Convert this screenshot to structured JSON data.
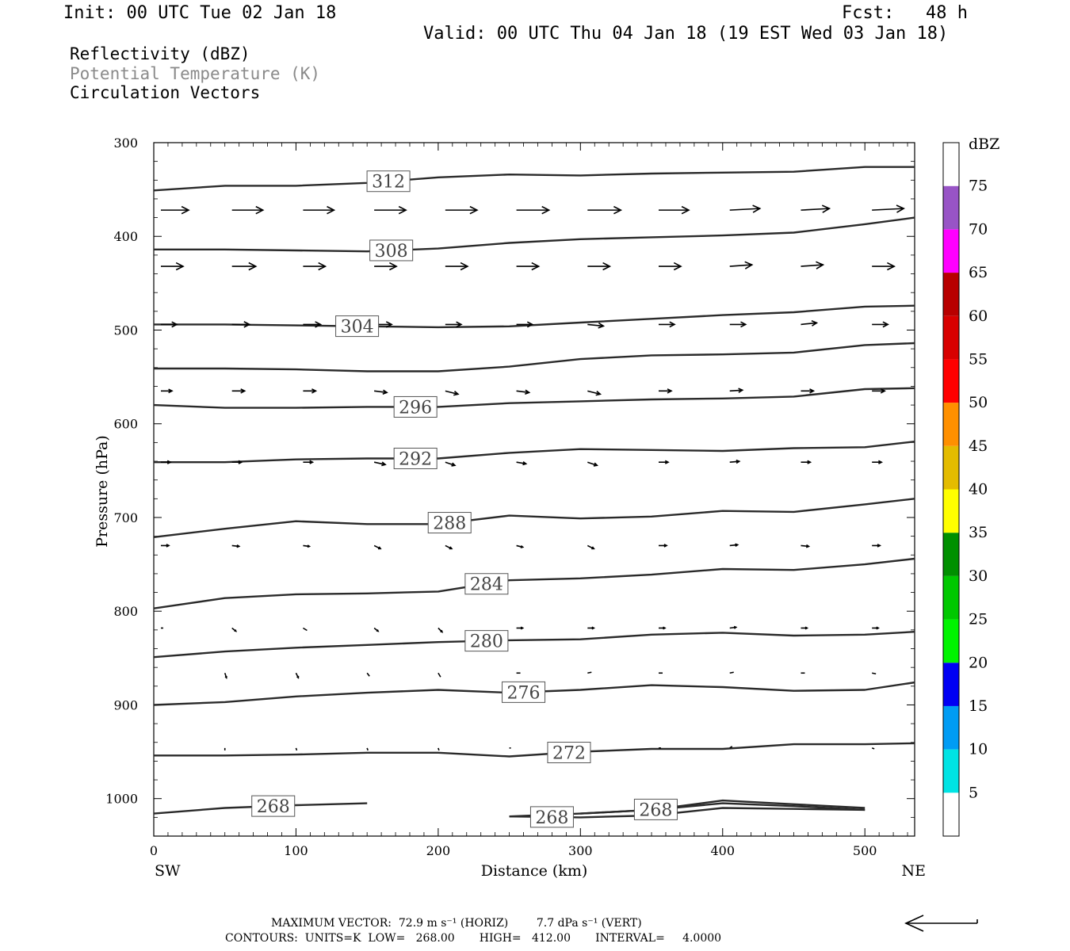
{
  "header": {
    "init": "Init: 00 UTC Tue 02 Jan 18",
    "fcst": "Fcst:   48 h",
    "valid": "Valid: 00 UTC Thu 04 Jan 18 (19 EST Wed 03 Jan 18)",
    "fields": [
      "Reflectivity (dBZ)",
      "Potential Temperature (K)",
      "Circulation Vectors"
    ]
  },
  "footer": {
    "max_vector": "MAXIMUM VECTOR:  72.9 m s⁻¹ (HORIZ)        7.7 dPa s⁻¹ (VERT)",
    "contours": "CONTOURS:  UNITS=K  LOW=   268.00       HIGH=   412.00       INTERVAL=     4.0000"
  },
  "chart_data": {
    "type": "line",
    "title": "",
    "xlabel": "Distance (km)",
    "ylabel": "Pressure (hPa)",
    "x_ticks": [
      0,
      100,
      200,
      300,
      400,
      500
    ],
    "y_ticks": [
      300,
      400,
      500,
      600,
      700,
      800,
      900,
      1000
    ],
    "xlim": [
      0,
      535
    ],
    "ylim": [
      300,
      1040
    ],
    "x_end_labels": {
      "left": "SW",
      "right": "NE"
    },
    "colorbar": {
      "label": "dBZ",
      "ticks": [
        5,
        10,
        15,
        20,
        25,
        30,
        35,
        40,
        45,
        50,
        55,
        60,
        65,
        70,
        75
      ],
      "colors": [
        "#ffffff",
        "#00e4e4",
        "#009cf4",
        "#0000f4",
        "#00f400",
        "#00c800",
        "#009000",
        "#ffff00",
        "#e4bc00",
        "#ff9000",
        "#ff0000",
        "#d80000",
        "#b80000",
        "#ff00ff",
        "#9854c6",
        "#ffffff"
      ]
    },
    "contour_x": [
      0,
      50,
      100,
      150,
      200,
      250,
      300,
      350,
      400,
      450,
      500,
      535
    ],
    "contours": [
      {
        "label": "312",
        "y": [
          351,
          346,
          346,
          343,
          337,
          334,
          335,
          333,
          332,
          331,
          326,
          326
        ],
        "label_x": 165
      },
      {
        "label": "308",
        "y": [
          414,
          414,
          415,
          416,
          413,
          407,
          403,
          401,
          399,
          396,
          387,
          380
        ],
        "label_x": 167
      },
      {
        "label": "304",
        "y": [
          494,
          494,
          495,
          496,
          497,
          496,
          492,
          488,
          484,
          481,
          475,
          474
        ],
        "label_x": 143
      },
      {
        "label": "",
        "y": [
          541,
          541,
          542,
          544,
          544,
          539,
          531,
          527,
          526,
          524,
          516,
          514
        ],
        "label_x": 300
      },
      {
        "label": "296",
        "y": [
          580,
          583,
          583,
          582,
          582,
          578,
          576,
          574,
          573,
          571,
          563,
          562
        ],
        "label_x": 184
      },
      {
        "label": "292",
        "y": [
          641,
          641,
          638,
          637,
          637,
          631,
          627,
          628,
          629,
          626,
          625,
          619
        ],
        "label_x": 184
      },
      {
        "label": "288",
        "y": [
          721,
          712,
          704,
          707,
          707,
          698,
          701,
          699,
          693,
          694,
          686,
          680
        ],
        "label_x": 208
      },
      {
        "label": "284",
        "y": [
          797,
          786,
          782,
          781,
          779,
          767,
          765,
          761,
          755,
          756,
          750,
          744
        ],
        "label_x": 234
      },
      {
        "label": "280",
        "y": [
          849,
          843,
          839,
          836,
          833,
          831,
          830,
          825,
          823,
          826,
          825,
          822
        ],
        "label_x": 234
      },
      {
        "label": "276",
        "y": [
          900,
          897,
          891,
          887,
          884,
          887,
          884,
          879,
          881,
          885,
          884,
          876
        ],
        "label_x": 260
      },
      {
        "label": "272",
        "y": [
          954,
          954,
          953,
          951,
          951,
          955,
          950,
          947,
          947,
          942,
          942,
          941
        ],
        "label_x": 292
      },
      {
        "label": "268",
        "y": [
          1016,
          1010,
          1007,
          1005,
          null,
          1019,
          1016,
          1012,
          1002,
          1006,
          1010,
          null
        ],
        "label_x": 84
      },
      {
        "label": "268",
        "y": [
          null,
          null,
          null,
          null,
          null,
          1019,
          1020,
          1018,
          1010,
          1011,
          1012,
          null
        ],
        "label_x": 280
      },
      {
        "label": "268",
        "y": [
          null,
          null,
          null,
          null,
          null,
          null,
          1016,
          1012,
          1005,
          1008,
          1012,
          null
        ],
        "label_x": 353
      }
    ],
    "vector_rows": [
      {
        "p": 372,
        "x": [
          5,
          55,
          105,
          155,
          205,
          255,
          305,
          355,
          405,
          455,
          505
        ],
        "u": [
          35,
          39,
          39,
          40,
          40,
          41,
          42,
          38,
          38,
          36,
          40
        ],
        "w": [
          0,
          0,
          0,
          0,
          0,
          0,
          0,
          0,
          -2,
          -2,
          -2
        ]
      },
      {
        "p": 432,
        "x": [
          5,
          55,
          105,
          155,
          205,
          255,
          305,
          355,
          405,
          455,
          505
        ],
        "u": [
          28,
          30,
          28,
          28,
          28,
          28,
          28,
          28,
          28,
          28,
          28
        ],
        "w": [
          0,
          0,
          0,
          0,
          0,
          0,
          0,
          0,
          -2,
          -2,
          0
        ]
      },
      {
        "p": 494,
        "x": [
          5,
          55,
          105,
          155,
          205,
          255,
          305,
          355,
          405,
          455,
          505
        ],
        "u": [
          20,
          22,
          22,
          22,
          20,
          20,
          20,
          20,
          20,
          20,
          20
        ],
        "w": [
          0,
          0,
          0,
          0,
          0,
          0,
          2,
          0,
          0,
          -2,
          0
        ]
      },
      {
        "p": 565,
        "x": [
          5,
          55,
          105,
          155,
          205,
          255,
          305,
          355,
          405,
          455,
          505
        ],
        "u": [
          14,
          16,
          16,
          16,
          16,
          16,
          16,
          16,
          16,
          16,
          16
        ],
        "w": [
          0,
          0,
          0,
          2,
          4,
          2,
          4,
          0,
          -1,
          0,
          0
        ]
      },
      {
        "p": 641,
        "x": [
          5,
          55,
          105,
          155,
          205,
          255,
          305,
          355,
          405,
          455,
          505
        ],
        "u": [
          12,
          12,
          12,
          14,
          12,
          12,
          12,
          12,
          12,
          12,
          12
        ],
        "w": [
          0,
          0,
          0,
          3,
          4,
          2,
          4,
          0,
          -1,
          0,
          0
        ]
      },
      {
        "p": 730,
        "x": [
          5,
          55,
          105,
          155,
          205,
          255,
          305,
          355,
          405,
          455,
          505
        ],
        "u": [
          10,
          9,
          8,
          8,
          8,
          8,
          8,
          10,
          10,
          10,
          10
        ],
        "w": [
          0,
          1,
          1,
          4,
          4,
          2,
          4,
          0,
          -1,
          1,
          0
        ]
      },
      {
        "p": 818,
        "x": [
          5,
          55,
          105,
          155,
          200,
          255,
          305,
          355,
          405,
          455,
          505
        ],
        "u": [
          3,
          5,
          5,
          5,
          5,
          8,
          8,
          8,
          8,
          8,
          8
        ],
        "w": [
          0,
          4,
          3,
          4,
          5,
          0,
          0,
          0,
          -1,
          0,
          0
        ]
      },
      {
        "p": 866,
        "x": [
          50,
          100,
          150,
          200,
          255,
          305,
          355,
          405,
          455,
          505
        ],
        "u": [
          2,
          3,
          3,
          3,
          5,
          5,
          5,
          5,
          5,
          5
        ],
        "w": [
          6,
          6,
          4,
          5,
          0,
          -1,
          0,
          -1,
          0,
          1
        ]
      },
      {
        "p": 946,
        "x": [
          50,
          100,
          150,
          200,
          250,
          355,
          405,
          505
        ],
        "u": [
          0,
          1,
          1,
          1,
          2,
          3,
          3,
          3
        ],
        "w": [
          3,
          3,
          3,
          3,
          0,
          0,
          -2,
          1
        ]
      }
    ],
    "legend_vector": {
      "direction": "left"
    }
  }
}
